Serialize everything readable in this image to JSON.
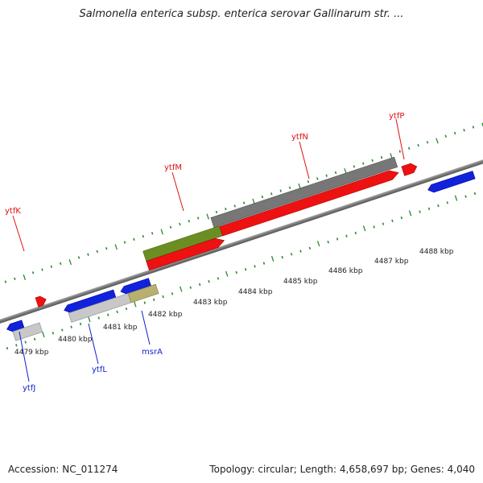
{
  "title": "Salmonella enterica subsp. enterica serovar Gallinarum str. ...",
  "footer": {
    "accession": "Accession: NC_011274",
    "topology": "Topology: circular; Length: 4,658,697 bp; Genes: 4,040"
  },
  "colors": {
    "forward_strand": "#ee1111",
    "reverse_strand": "#1122dd",
    "backbone": "#888888",
    "tick": "#2a8a2a",
    "forward_label": "#dd1111",
    "reverse_label": "#1122cc",
    "gray_feature": "#777777",
    "light_gray_feature": "#c8c8c8",
    "olive_feature": "#6b8e23",
    "khaki_feature": "#b8b070"
  },
  "scale": {
    "unit": "kbp",
    "tick_labels": [
      "4479 kbp",
      "4480 kbp",
      "4481 kbp",
      "4482 kbp",
      "4483 kbp",
      "4484 kbp",
      "4485 kbp",
      "4486 kbp",
      "4487 kbp",
      "4488 kbp"
    ]
  },
  "genes": {
    "forward": [
      {
        "name": "ytfK",
        "icon": "right-arrow"
      },
      {
        "name": "ytfM",
        "icon": "right-arrow"
      },
      {
        "name": "ytfN",
        "icon": "right-arrow"
      },
      {
        "name": "ytfP",
        "icon": "right-arrow"
      }
    ],
    "reverse": [
      {
        "name": "ytfJ",
        "icon": "left-arrow"
      },
      {
        "name": "ytfL",
        "icon": "left-arrow"
      },
      {
        "name": "msrA",
        "icon": "left-arrow"
      }
    ]
  }
}
